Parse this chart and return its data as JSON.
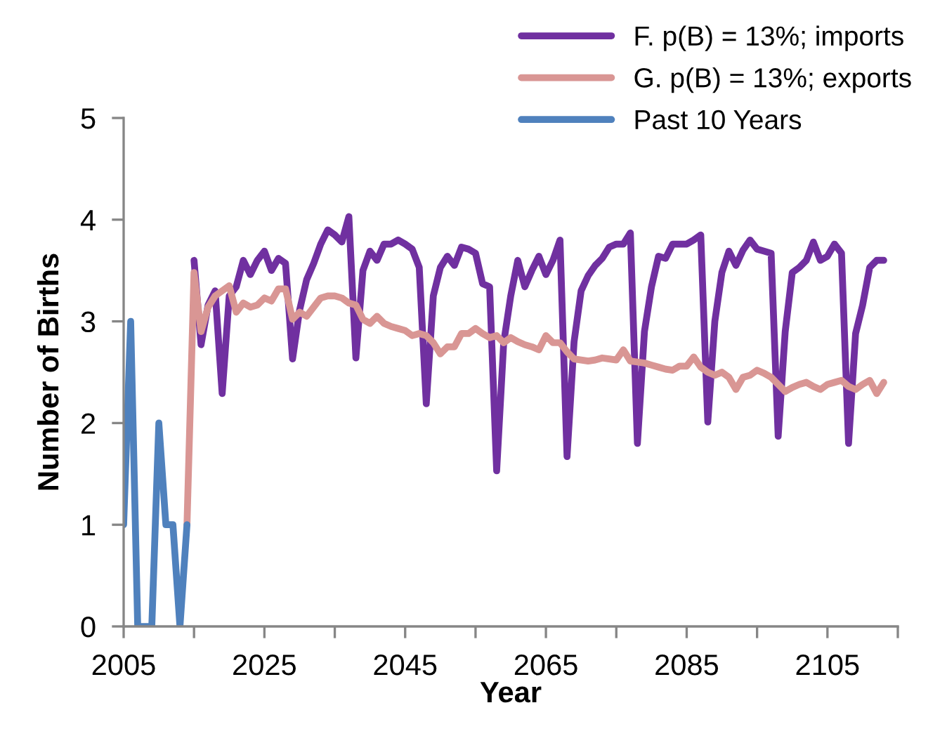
{
  "chart_data": {
    "type": "line",
    "xlabel": "Year",
    "ylabel": "Number of Births",
    "xlim": [
      2005,
      2115
    ],
    "ylim": [
      0,
      5
    ],
    "xticks": [
      2005,
      {
        "value": 2015,
        "label": null
      },
      2025,
      {
        "value": 2035,
        "label": null
      },
      2045,
      {
        "value": 2055,
        "label": null
      },
      2065,
      {
        "value": 2075,
        "label": null
      },
      2085,
      {
        "value": 2095,
        "label": null
      },
      2105,
      {
        "value": 2115,
        "label": null
      }
    ],
    "yticks": [
      0,
      1,
      2,
      3,
      4,
      5
    ],
    "grid": false,
    "legend": "top right",
    "marker": "none",
    "line_style": "solid",
    "series": [
      {
        "name": "F. p(B) = 13%; imports",
        "color": "#7030a0",
        "x": [
          2015,
          2016,
          2017,
          2018,
          2019,
          2020,
          2021,
          2022,
          2023,
          2024,
          2025,
          2026,
          2027,
          2028,
          2029,
          2030,
          2031,
          2032,
          2033,
          2034,
          2035,
          2036,
          2037,
          2038,
          2039,
          2040,
          2041,
          2042,
          2043,
          2044,
          2045,
          2046,
          2047,
          2048,
          2049,
          2050,
          2051,
          2052,
          2053,
          2054,
          2055,
          2056,
          2057,
          2058,
          2059,
          2060,
          2061,
          2062,
          2063,
          2064,
          2065,
          2066,
          2067,
          2068,
          2069,
          2070,
          2071,
          2072,
          2073,
          2074,
          2075,
          2076,
          2077,
          2078,
          2079,
          2080,
          2081,
          2082,
          2083,
          2084,
          2085,
          2086,
          2087,
          2088,
          2089,
          2090,
          2091,
          2092,
          2093,
          2094,
          2095,
          2096,
          2097,
          2098,
          2099,
          2100,
          2101,
          2102,
          2103,
          2104,
          2105,
          2106,
          2107,
          2108,
          2109,
          2110,
          2111,
          2112,
          2113
        ],
        "values": [
          3.6,
          2.77,
          3.16,
          3.3,
          2.29,
          3.25,
          3.34,
          3.6,
          3.46,
          3.6,
          3.69,
          3.5,
          3.62,
          3.57,
          2.63,
          3.11,
          3.41,
          3.57,
          3.76,
          3.9,
          3.85,
          3.78,
          4.03,
          2.64,
          3.5,
          3.69,
          3.6,
          3.76,
          3.76,
          3.8,
          3.76,
          3.71,
          3.53,
          2.19,
          3.25,
          3.53,
          3.64,
          3.55,
          3.73,
          3.71,
          3.67,
          3.37,
          3.34,
          1.53,
          2.79,
          3.25,
          3.6,
          3.34,
          3.5,
          3.64,
          3.46,
          3.6,
          3.8,
          1.67,
          2.8,
          3.3,
          3.45,
          3.55,
          3.62,
          3.73,
          3.76,
          3.76,
          3.87,
          1.8,
          2.9,
          3.34,
          3.64,
          3.62,
          3.76,
          3.76,
          3.76,
          3.8,
          3.85,
          2.01,
          3.0,
          3.48,
          3.69,
          3.55,
          3.7,
          3.8,
          3.71,
          3.69,
          3.67,
          1.87,
          2.9,
          3.48,
          3.53,
          3.6,
          3.78,
          3.6,
          3.64,
          3.76,
          3.67,
          1.8,
          2.88,
          3.16,
          3.53,
          3.6,
          3.6
        ]
      },
      {
        "name": "G. p(B) = 13%; exports",
        "color": "#d99694",
        "x": [
          2014,
          2015,
          2016,
          2017,
          2018,
          2019,
          2020,
          2021,
          2022,
          2023,
          2024,
          2025,
          2026,
          2027,
          2028,
          2029,
          2030,
          2031,
          2032,
          2033,
          2034,
          2035,
          2036,
          2037,
          2038,
          2039,
          2040,
          2041,
          2042,
          2043,
          2044,
          2045,
          2046,
          2047,
          2048,
          2049,
          2050,
          2051,
          2052,
          2053,
          2054,
          2055,
          2056,
          2057,
          2058,
          2059,
          2060,
          2061,
          2062,
          2063,
          2064,
          2065,
          2066,
          2067,
          2068,
          2069,
          2070,
          2071,
          2072,
          2073,
          2074,
          2075,
          2076,
          2077,
          2078,
          2079,
          2080,
          2081,
          2082,
          2083,
          2084,
          2085,
          2086,
          2087,
          2088,
          2089,
          2090,
          2091,
          2092,
          2093,
          2094,
          2095,
          2096,
          2097,
          2098,
          2099,
          2100,
          2101,
          2102,
          2103,
          2104,
          2105,
          2106,
          2107,
          2108,
          2109,
          2110,
          2111,
          2112,
          2113
        ],
        "values": [
          1.0,
          3.48,
          2.9,
          3.14,
          3.25,
          3.3,
          3.35,
          3.09,
          3.18,
          3.14,
          3.16,
          3.23,
          3.2,
          3.32,
          3.32,
          3.02,
          3.09,
          3.05,
          3.14,
          3.23,
          3.25,
          3.25,
          3.23,
          3.18,
          3.16,
          3.02,
          2.98,
          3.05,
          2.98,
          2.95,
          2.93,
          2.91,
          2.86,
          2.88,
          2.86,
          2.79,
          2.68,
          2.75,
          2.75,
          2.88,
          2.88,
          2.93,
          2.88,
          2.84,
          2.86,
          2.79,
          2.84,
          2.8,
          2.77,
          2.75,
          2.72,
          2.86,
          2.79,
          2.79,
          2.7,
          2.63,
          2.62,
          2.61,
          2.62,
          2.64,
          2.63,
          2.62,
          2.72,
          2.61,
          2.6,
          2.59,
          2.57,
          2.55,
          2.53,
          2.52,
          2.56,
          2.56,
          2.65,
          2.55,
          2.5,
          2.47,
          2.5,
          2.45,
          2.33,
          2.45,
          2.47,
          2.52,
          2.49,
          2.45,
          2.38,
          2.31,
          2.35,
          2.38,
          2.4,
          2.36,
          2.33,
          2.38,
          2.4,
          2.42,
          2.36,
          2.33,
          2.38,
          2.42,
          2.29,
          2.4
        ]
      },
      {
        "name": "Past 10 Years",
        "color": "#4f81bd",
        "x": [
          2005,
          2006,
          2007,
          2008,
          2009,
          2010,
          2011,
          2012,
          2013,
          2014
        ],
        "values": [
          1,
          3,
          0,
          0,
          0,
          2,
          1,
          1,
          0,
          1
        ]
      }
    ]
  }
}
